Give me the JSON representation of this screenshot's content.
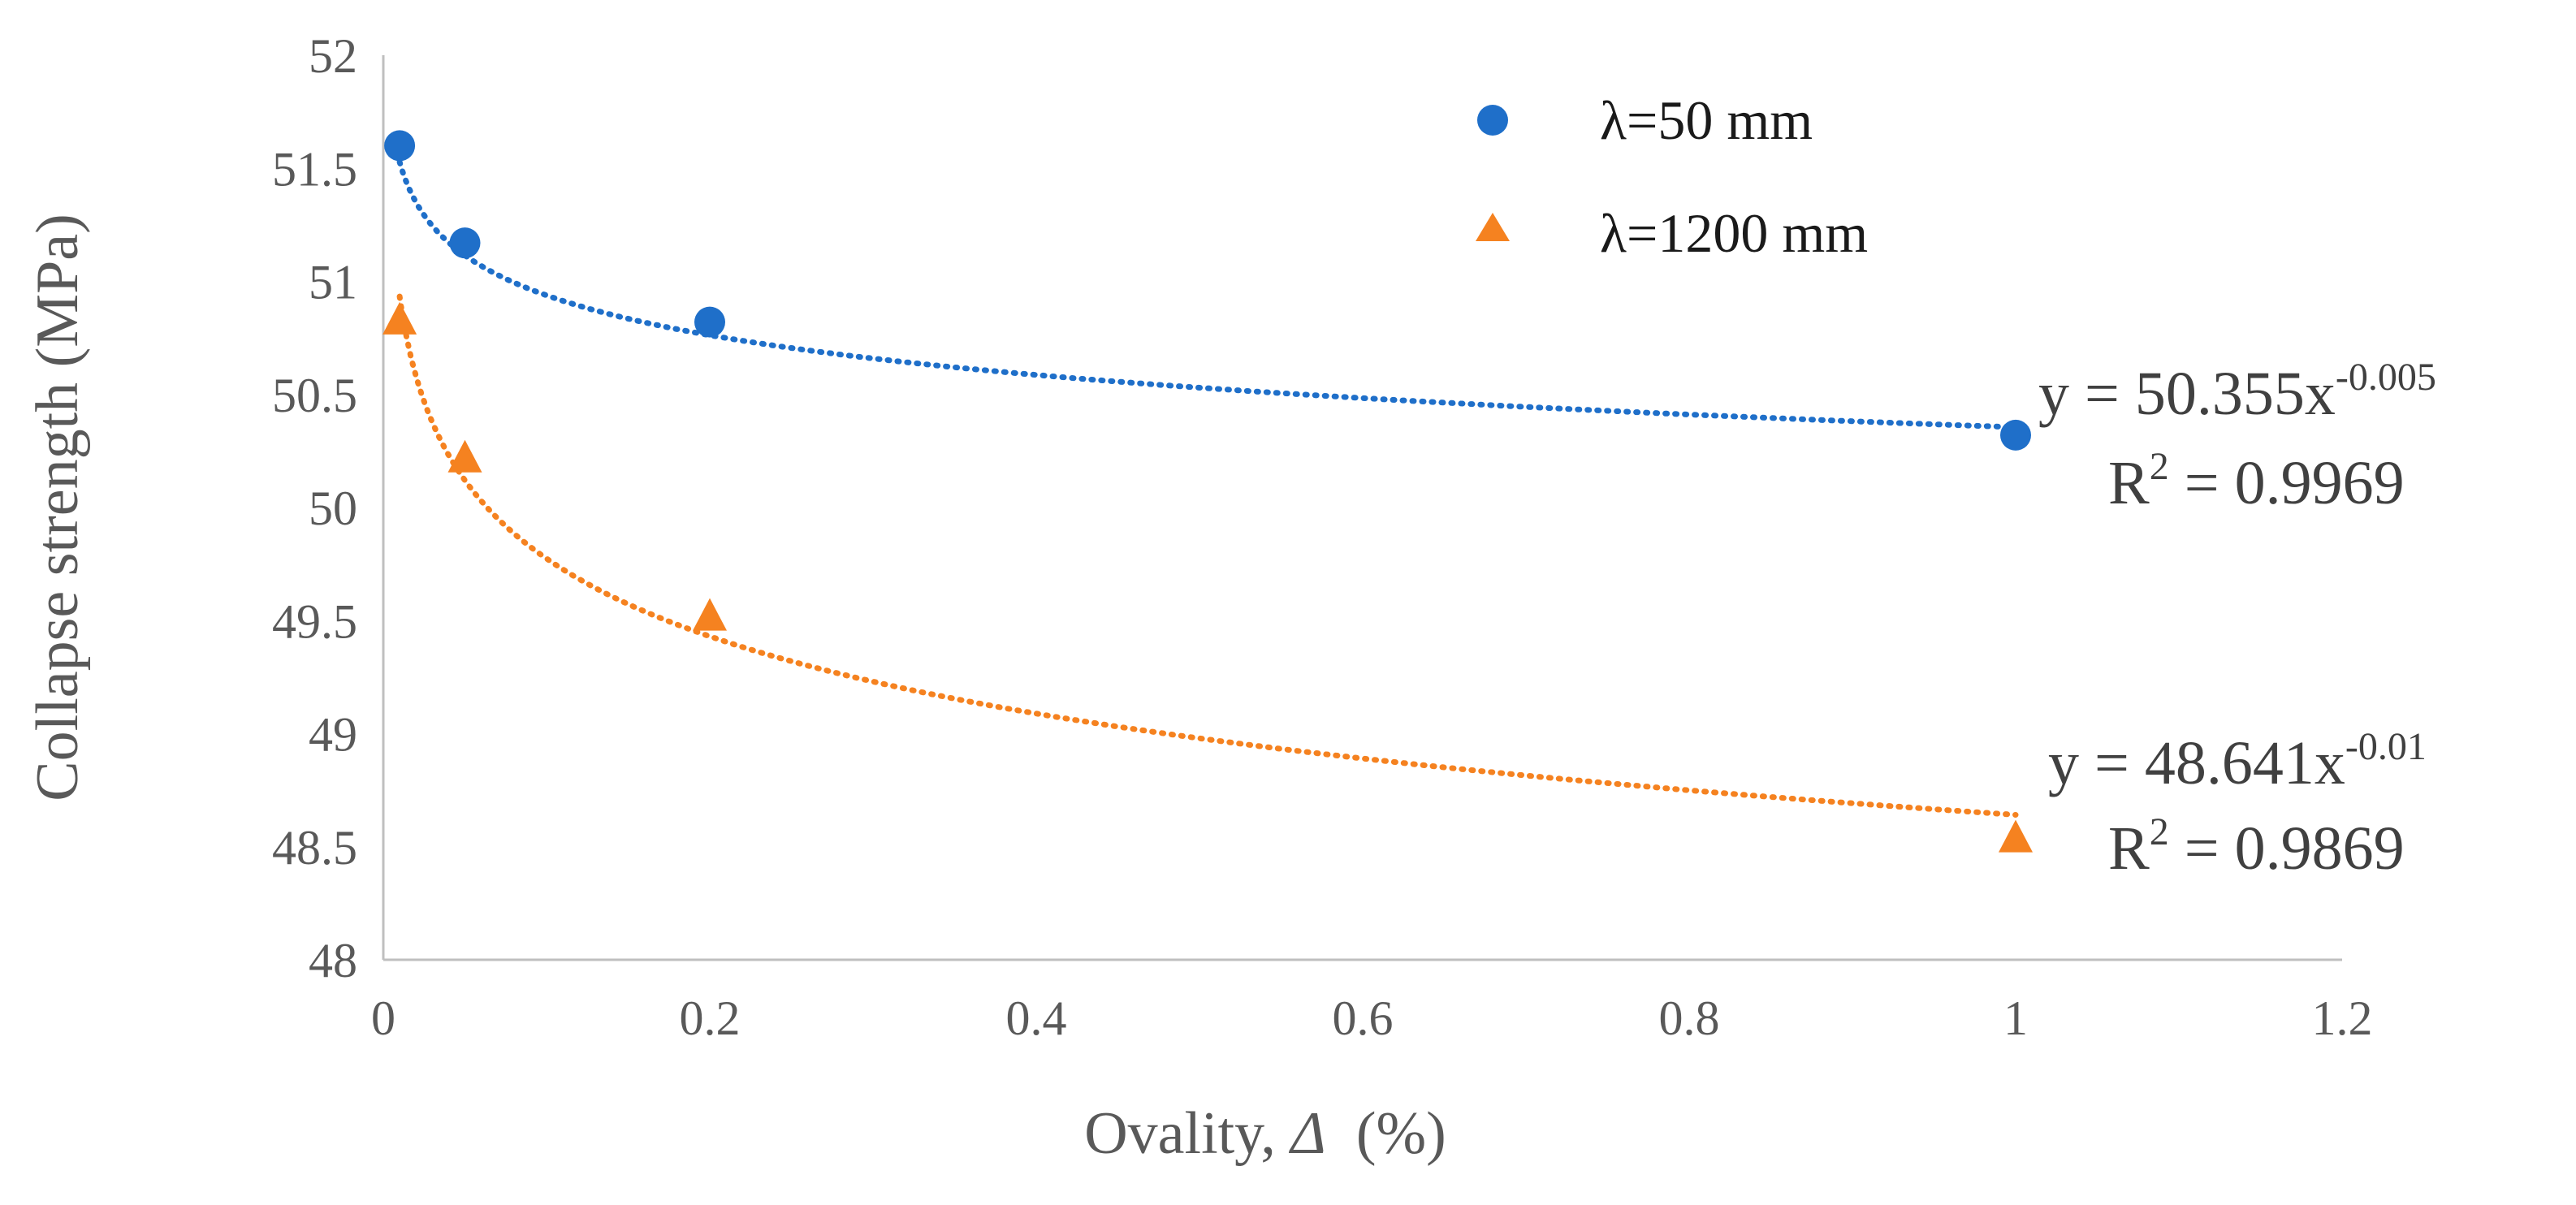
{
  "chart_data": {
    "type": "scatter",
    "title": "",
    "xlabel": "Ovality, Δ (%)",
    "xlabel_prefix": "Ovality, ",
    "xlabel_symbol": "Δ",
    "xlabel_suffix": "  (%)",
    "ylabel": "Collapse strength (MPa)",
    "xlim": [
      0,
      1.2
    ],
    "ylim": [
      48,
      52
    ],
    "x_ticks": [
      0,
      0.2,
      0.4,
      0.6,
      0.8,
      1,
      1.2
    ],
    "x_tick_labels": [
      "0",
      "0.2",
      "0.4",
      "0.6",
      "0.8",
      "1",
      "1.2"
    ],
    "y_ticks": [
      48,
      48.5,
      49,
      49.5,
      50,
      50.5,
      51,
      51.5,
      52
    ],
    "y_tick_labels": [
      "48",
      "48.5",
      "49",
      "49.5",
      "50",
      "50.5",
      "51",
      "51.5",
      "52"
    ],
    "grid": false,
    "legend_position": "top-center",
    "series": [
      {
        "name": "λ=50 mm",
        "marker": "circle",
        "color": "#1f6fc9",
        "x": [
          0.01,
          0.05,
          0.2,
          1
        ],
        "y": [
          51.6,
          51.17,
          50.82,
          50.32
        ],
        "trendline": {
          "type": "power",
          "a": 50.355,
          "b": -0.005,
          "equation_base": "y = 50.355x",
          "equation_exp": "-0.005",
          "r2_label": "R",
          "r2_sup": "2",
          "r2_value": " = 0.9969"
        }
      },
      {
        "name": "λ=1200 mm",
        "marker": "triangle",
        "color": "#f58220",
        "x": [
          0.01,
          0.05,
          0.2,
          1
        ],
        "y": [
          50.83,
          50.22,
          49.52,
          48.54
        ],
        "trendline": {
          "type": "power",
          "a": 48.641,
          "b": -0.01,
          "equation_base": "y = 48.641x",
          "equation_exp": "-0.01",
          "r2_label": "R",
          "r2_sup": "2",
          "r2_value": " = 0.9869"
        }
      }
    ]
  }
}
